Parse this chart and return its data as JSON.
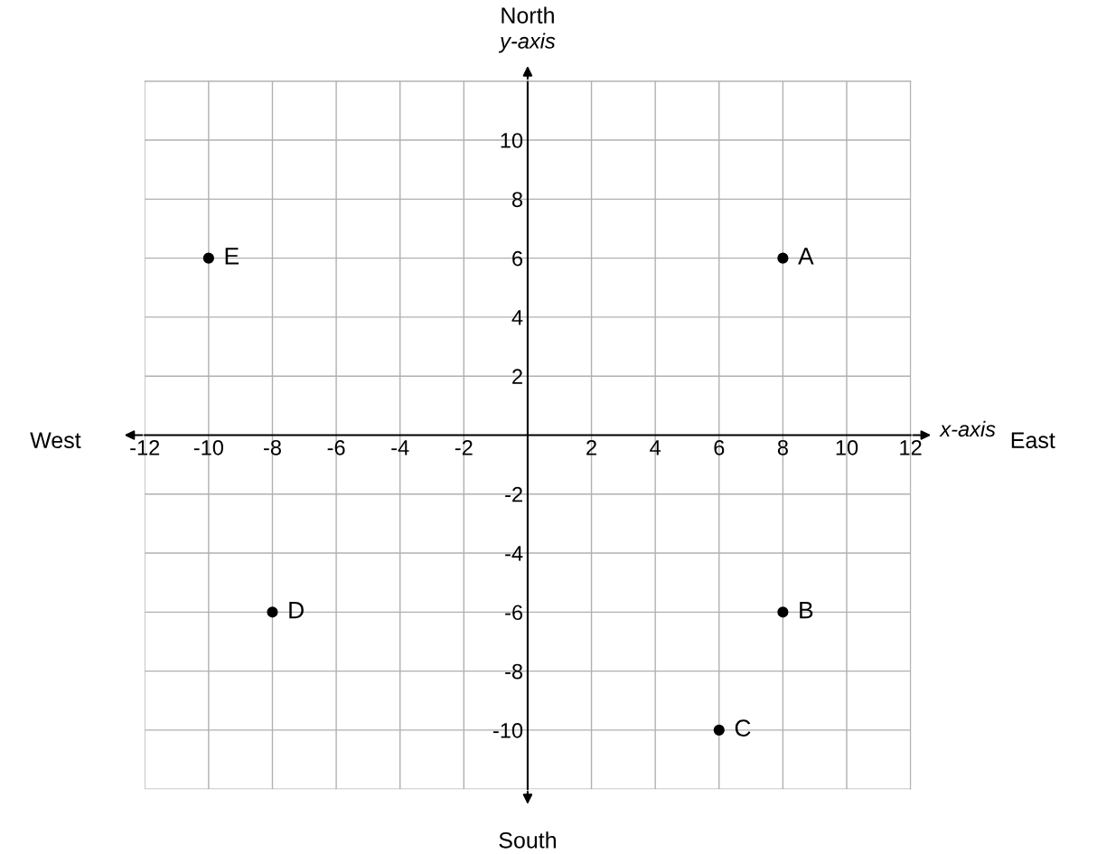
{
  "chart_data": {
    "type": "scatter",
    "xlabel": "x-axis",
    "ylabel": "y-axis",
    "x": [
      8,
      8,
      6,
      -8,
      -10
    ],
    "series": [
      {
        "color": "#000000",
        "values": [
          6,
          -6,
          -10,
          -6,
          6
        ]
      }
    ],
    "marker": "circle",
    "grid": true,
    "xlim": [
      -12,
      12
    ],
    "ylim": [
      -12,
      12
    ],
    "xticks": [
      -12,
      -10,
      -8,
      -6,
      -4,
      -2,
      2,
      4,
      6,
      8,
      10,
      12
    ],
    "yticks": [
      {
        "value": -12,
        "label": null
      },
      -10,
      -8,
      -6,
      -4,
      -2,
      2,
      4,
      6,
      8,
      10,
      {
        "value": 12,
        "label": null
      }
    ],
    "annotations": [
      "North",
      "South",
      "West",
      "East",
      {
        "text": "A",
        "x": 8,
        "y": 6
      },
      {
        "text": "B",
        "x": 8,
        "y": -6
      },
      {
        "text": "C",
        "x": 6,
        "y": -10
      },
      {
        "text": "D",
        "x": -8,
        "y": -6
      },
      {
        "text": "E",
        "x": -10,
        "y": 6
      }
    ]
  }
}
